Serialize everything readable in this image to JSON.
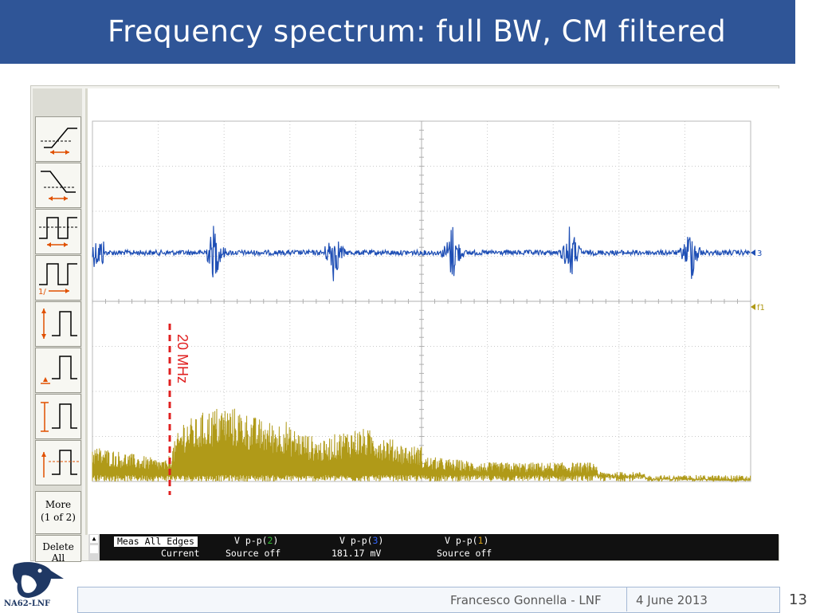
{
  "slide": {
    "title": "Frequency spectrum: full BW, CM filtered",
    "footer_author": "Francesco Gonnella - LNF",
    "footer_date": "4 June 2013",
    "page_number": "13",
    "logo_text": "NA62-LNF"
  },
  "scope": {
    "toolbar": {
      "buttons": [
        "rise-time-icon",
        "fall-time-icon",
        "positive-width-icon",
        "period-icon",
        "amplitude-icon",
        "low-level-icon",
        "max-icon",
        "mean-icon"
      ],
      "more_label_1": "More",
      "more_label_2": "(1 of 2)",
      "delete_label_1": "Delete",
      "delete_label_2": "All"
    },
    "markers": {
      "ch3": "3",
      "f1": "f1"
    },
    "annotation": "20 MHz",
    "measurements": {
      "meas_label": "Meas All Edges",
      "row_label": "Current",
      "col1_head_pre": "V p-p(",
      "col1_ch": "2",
      "col1_head_post": ")",
      "col1_value": "Source off",
      "col2_head_pre": "V p-p(",
      "col2_ch": "3",
      "col2_head_post": ")",
      "col2_value": "181.17 mV",
      "col3_head_pre": "V p-p(",
      "col3_ch": "1",
      "col3_head_post": ")",
      "col3_value": "Source off"
    },
    "colors": {
      "ch3_trace": "#1f4fb5",
      "fft_trace": "#b09a18",
      "annotation": "#e02020",
      "ch2_label": "#33bb33",
      "ch3_label": "#3366ff",
      "ch1_label": "#d4a017"
    }
  }
}
